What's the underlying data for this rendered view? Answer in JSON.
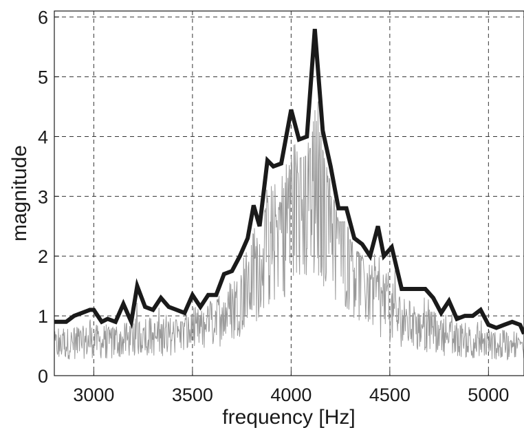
{
  "chart_data": {
    "type": "line",
    "xlabel": "frequency  [Hz]",
    "ylabel": "magnitude",
    "xlim": [
      2800,
      5180
    ],
    "ylim": [
      0,
      6.1
    ],
    "xticks": [
      3000,
      3500,
      4000,
      4500,
      5000
    ],
    "yticks": [
      0,
      1,
      2,
      3,
      4,
      5,
      6
    ],
    "grid": true,
    "legend": "none",
    "colors": {
      "envelope": "#1a1a1a",
      "raw": "#999999"
    },
    "series": [
      {
        "style": "thick-dark",
        "x": [
          2800,
          2860,
          2900,
          2940,
          2980,
          3000,
          3040,
          3070,
          3110,
          3150,
          3190,
          3220,
          3260,
          3300,
          3340,
          3380,
          3420,
          3460,
          3500,
          3540,
          3580,
          3620,
          3660,
          3700,
          3740,
          3780,
          3810,
          3840,
          3880,
          3910,
          3950,
          4000,
          4040,
          4080,
          4120,
          4160,
          4200,
          4240,
          4280,
          4320,
          4360,
          4400,
          4440,
          4470,
          4510,
          4560,
          4600,
          4640,
          4680,
          4720,
          4760,
          4800,
          4840,
          4880,
          4920,
          4960,
          5000,
          5040,
          5080,
          5120,
          5160,
          5180
        ],
        "y": [
          0.9,
          0.9,
          1.0,
          1.05,
          1.1,
          1.1,
          0.9,
          0.95,
          0.9,
          1.2,
          0.9,
          1.5,
          1.15,
          1.1,
          1.3,
          1.15,
          1.1,
          1.05,
          1.35,
          1.15,
          1.35,
          1.35,
          1.7,
          1.75,
          2.0,
          2.3,
          2.85,
          2.5,
          3.6,
          3.5,
          3.55,
          4.45,
          3.95,
          4.0,
          5.8,
          4.1,
          3.5,
          2.8,
          2.8,
          2.3,
          2.2,
          2.0,
          2.5,
          2.0,
          2.15,
          1.45,
          1.45,
          1.45,
          1.45,
          1.3,
          1.05,
          1.25,
          0.95,
          1.0,
          1.0,
          1.1,
          0.85,
          0.8,
          0.85,
          0.9,
          0.85,
          0.7
        ]
      },
      {
        "style": "thin-gray",
        "x": [
          2800,
          2850,
          2900,
          2950,
          3000,
          3050,
          3100,
          3150,
          3200,
          3250,
          3300,
          3350,
          3400,
          3450,
          3500,
          3550,
          3600,
          3650,
          3700,
          3750,
          3800,
          3850,
          3900,
          3950,
          4000,
          4050,
          4100,
          4150,
          4200,
          4250,
          4300,
          4350,
          4400,
          4450,
          4500,
          4550,
          4600,
          4650,
          4700,
          4750,
          4800,
          4850,
          4900,
          4950,
          5000,
          5050,
          5100,
          5150,
          5180
        ],
        "y": [
          0.55,
          0.6,
          0.6,
          0.62,
          0.65,
          0.6,
          0.62,
          0.65,
          0.7,
          0.75,
          0.7,
          0.72,
          0.75,
          0.75,
          0.8,
          0.9,
          1.0,
          1.1,
          1.25,
          1.5,
          1.8,
          2.1,
          2.5,
          2.8,
          3.0,
          3.2,
          3.3,
          3.2,
          3.0,
          2.6,
          2.2,
          1.9,
          1.6,
          1.4,
          1.2,
          1.05,
          0.95,
          0.85,
          0.8,
          0.75,
          0.7,
          0.68,
          0.65,
          0.62,
          0.6,
          0.58,
          0.55,
          0.55,
          0.55
        ]
      }
    ]
  }
}
